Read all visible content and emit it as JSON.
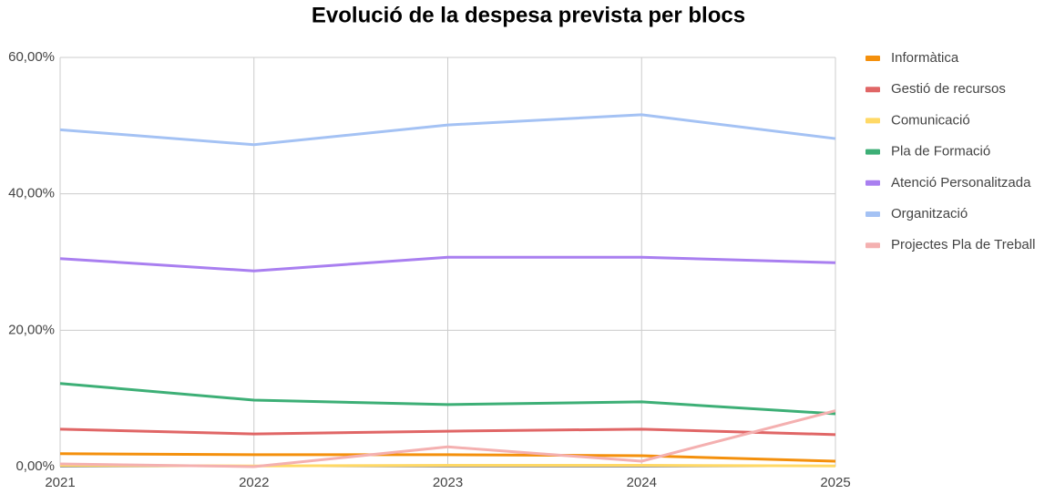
{
  "chart_data": {
    "type": "line",
    "title": "Evolució de la despesa prevista per blocs",
    "categories": [
      "2021",
      "2022",
      "2023",
      "2024",
      "2025"
    ],
    "series": [
      {
        "name": "Informàtica",
        "color": "#f4900c",
        "values": [
          1.9,
          1.75,
          1.75,
          1.6,
          0.8
        ]
      },
      {
        "name": "Gestió de recursos",
        "color": "#e06666",
        "values": [
          5.5,
          4.8,
          5.2,
          5.5,
          4.7
        ]
      },
      {
        "name": "Comunicació",
        "color": "#ffd966",
        "values": [
          0.2,
          0.1,
          0.2,
          0.2,
          0.1
        ]
      },
      {
        "name": "Pla de Formació",
        "color": "#3daf76",
        "values": [
          12.2,
          9.75,
          9.1,
          9.5,
          7.75
        ]
      },
      {
        "name": "Atenció Personalitzada",
        "color": "#a97ff0",
        "values": [
          30.5,
          28.7,
          30.7,
          30.7,
          29.9
        ]
      },
      {
        "name": "Organització",
        "color": "#a4c2f4",
        "values": [
          49.4,
          47.2,
          50.1,
          51.6,
          48.1
        ]
      },
      {
        "name": "Projectes Pla de Treball",
        "color": "#f4b0b0",
        "values": [
          0.4,
          0,
          2.9,
          0.8,
          8.2
        ]
      }
    ],
    "ylim": [
      0,
      60
    ],
    "yticks": [
      {
        "value": 0,
        "label": "0,00%"
      },
      {
        "value": 20,
        "label": "20,00%"
      },
      {
        "value": 40,
        "label": "40,00%"
      },
      {
        "value": 60,
        "label": "60,00%"
      }
    ],
    "grid": true,
    "legend": "right"
  }
}
